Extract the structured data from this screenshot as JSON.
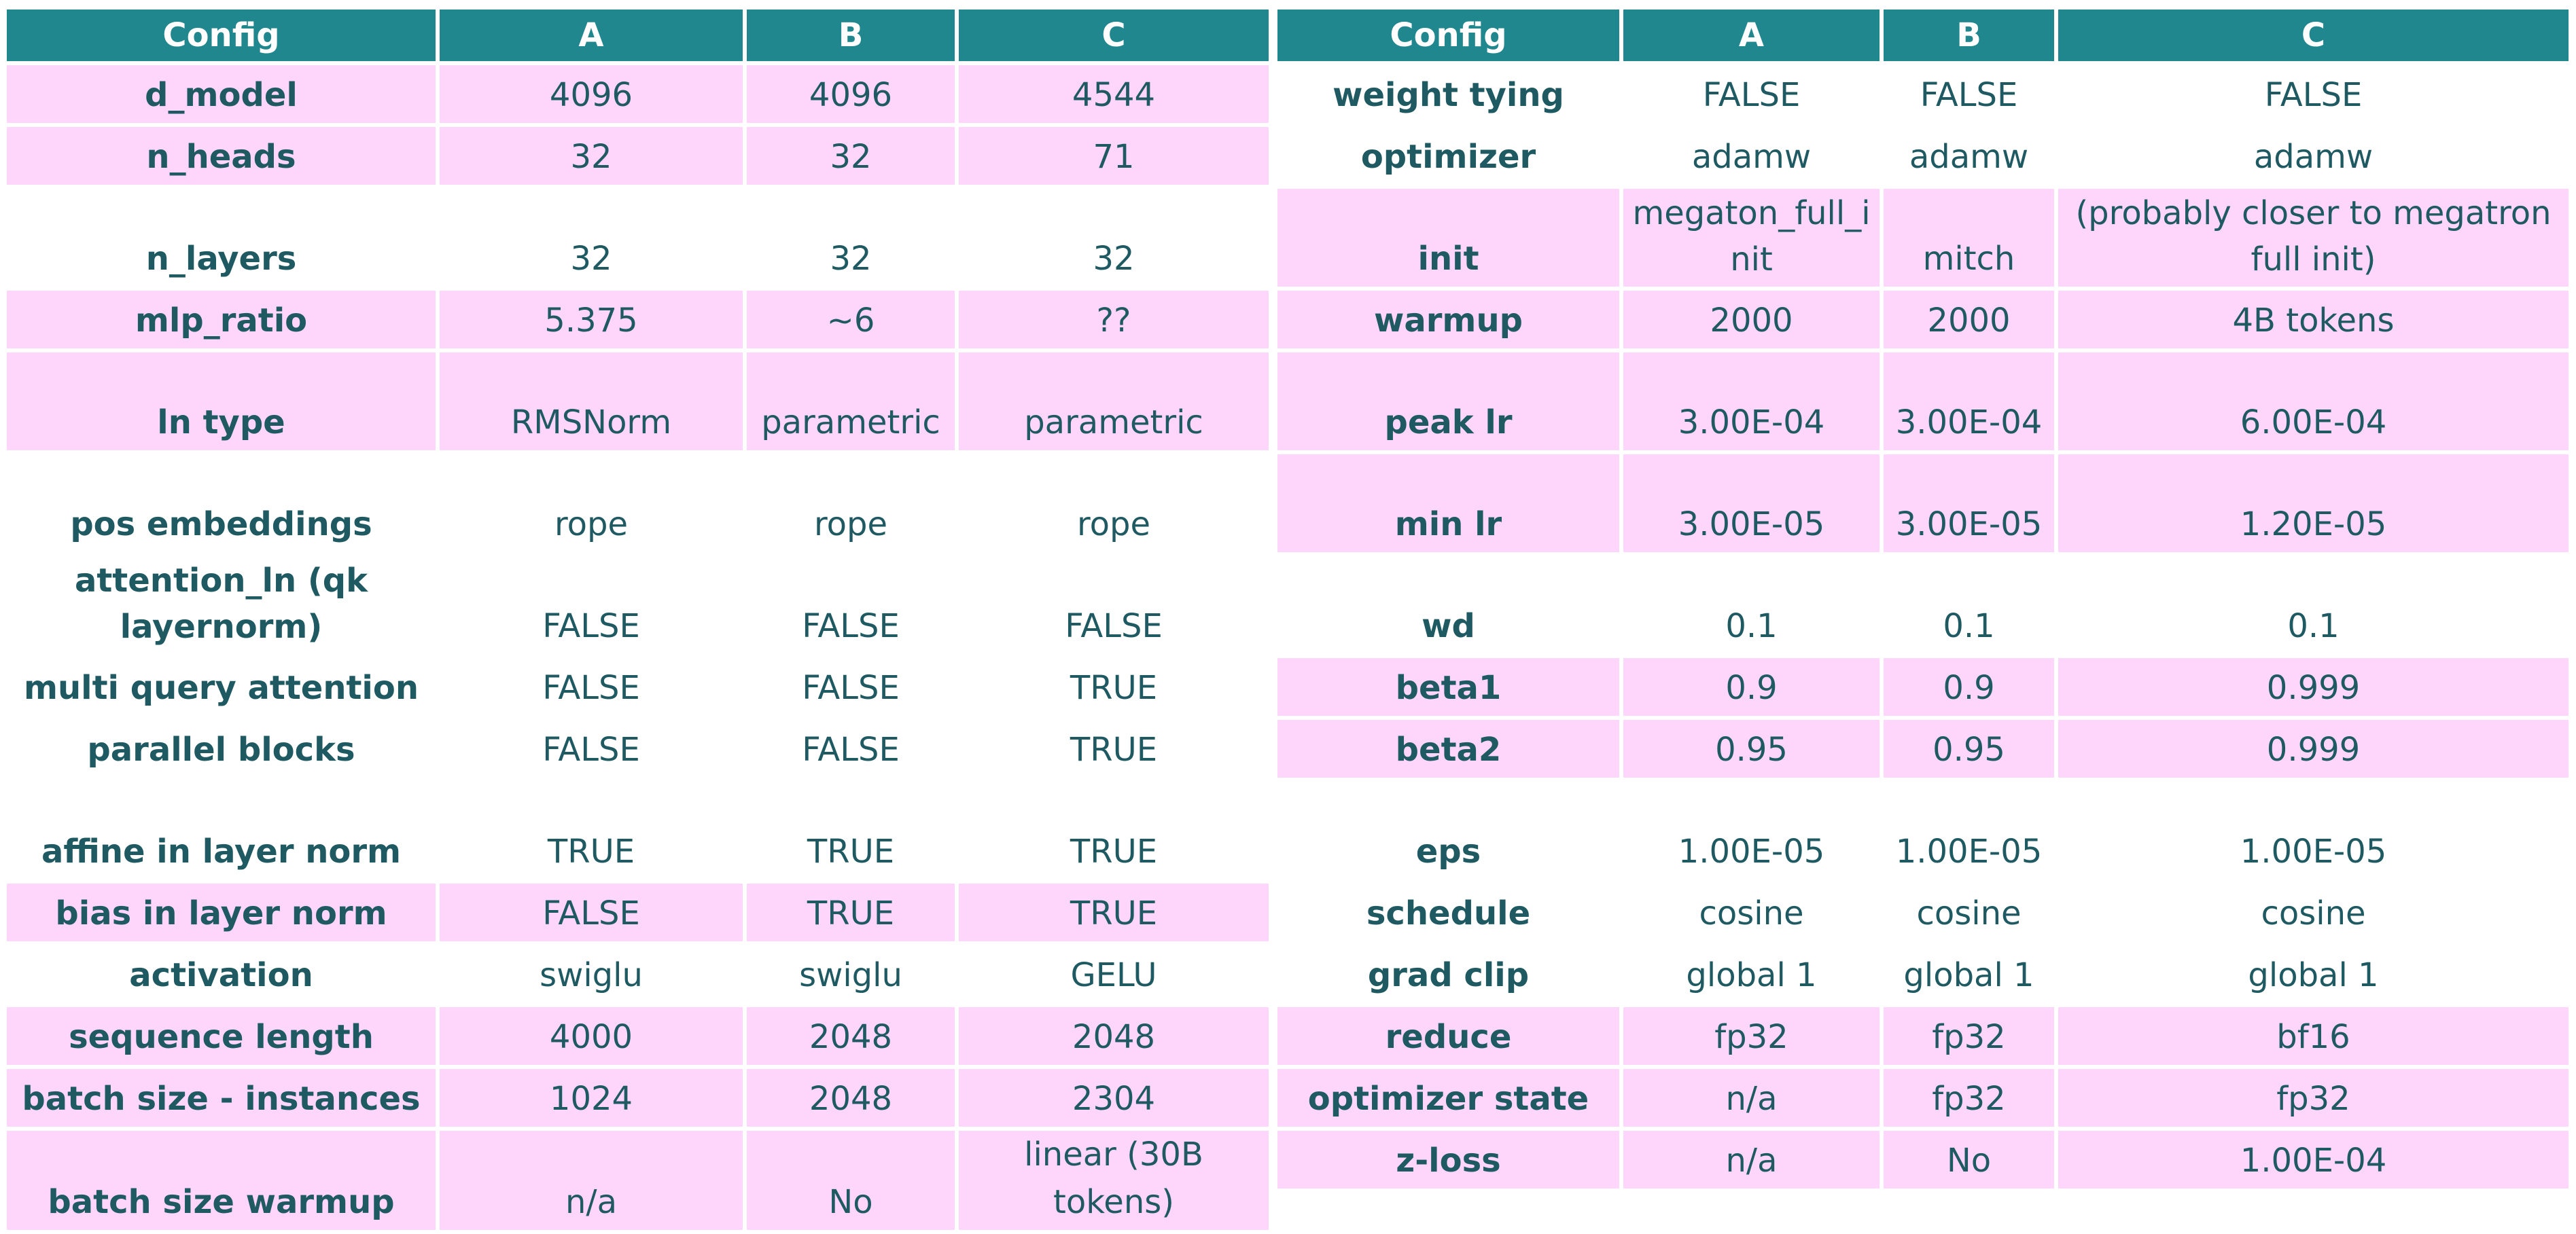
{
  "left_table": {
    "headers": [
      "Config",
      "A",
      "B",
      "C"
    ],
    "rows": [
      [
        "d_model",
        "4096",
        "4096",
        "4544"
      ],
      [
        "n_heads",
        "32",
        "32",
        "71"
      ],
      [
        "n_layers",
        "32",
        "32",
        "32"
      ],
      [
        "mlp_ratio",
        "5.375",
        "~6",
        "??"
      ],
      [
        "ln type",
        "RMSNorm",
        "parametric",
        "parametric"
      ],
      [
        "pos embeddings",
        "rope",
        "rope",
        "rope"
      ],
      [
        "attention_ln (qk layernorm)",
        "FALSE",
        "FALSE",
        "FALSE"
      ],
      [
        "multi query attention",
        "FALSE",
        "FALSE",
        "TRUE"
      ],
      [
        "parallel blocks",
        "FALSE",
        "FALSE",
        "TRUE"
      ],
      [
        "affine in layer norm",
        "TRUE",
        "TRUE",
        "TRUE"
      ],
      [
        "bias in layer norm",
        "FALSE",
        "TRUE",
        "TRUE"
      ],
      [
        "activation",
        "swiglu",
        "swiglu",
        "GELU"
      ],
      [
        "sequence length",
        "4000",
        "2048",
        "2048"
      ],
      [
        "batch size - instances",
        "1024",
        "2048",
        "2304"
      ],
      [
        "batch size warmup",
        "n/a",
        "No",
        "linear (30B tokens)"
      ]
    ]
  },
  "right_table": {
    "headers": [
      "Config",
      "A",
      "B",
      "C"
    ],
    "rows": [
      [
        "weight tying",
        "FALSE",
        "FALSE",
        "FALSE"
      ],
      [
        "optimizer",
        "adamw",
        "adamw",
        "adamw"
      ],
      [
        "init",
        "megaton_full_init",
        "mitch",
        "(probably closer to megatron full init)"
      ],
      [
        "warmup",
        "2000",
        "2000",
        "4B tokens"
      ],
      [
        "peak lr",
        "3.00E-04",
        "3.00E-04",
        "6.00E-04"
      ],
      [
        "min lr",
        "3.00E-05",
        "3.00E-05",
        "1.20E-05"
      ],
      [
        "wd",
        "0.1",
        "0.1",
        "0.1"
      ],
      [
        "beta1",
        "0.9",
        "0.9",
        "0.999"
      ],
      [
        "beta2",
        "0.95",
        "0.95",
        "0.999"
      ],
      [
        "eps",
        "1.00E-05",
        "1.00E-05",
        "1.00E-05"
      ],
      [
        "schedule",
        "cosine",
        "cosine",
        "cosine"
      ],
      [
        "grad clip",
        "global 1",
        "global 1",
        "global 1"
      ],
      [
        "reduce",
        "fp32",
        "fp32",
        "bf16"
      ],
      [
        "optimizer state",
        "n/a",
        "fp32",
        "fp32"
      ],
      [
        "z-loss",
        "n/a",
        "No",
        "1.00E-04"
      ]
    ]
  }
}
